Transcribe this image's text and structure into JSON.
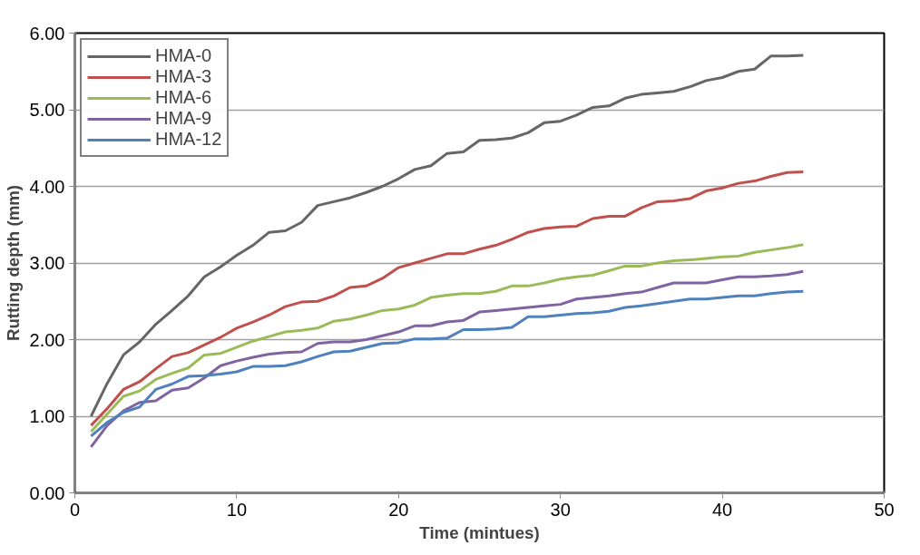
{
  "chart_data": {
    "type": "line",
    "xlabel": "Time (mintues)",
    "ylabel": "Rutting depth (mm)",
    "x": [
      1,
      2,
      3,
      4,
      5,
      6,
      7,
      8,
      9,
      10,
      11,
      12,
      13,
      14,
      15,
      16,
      17,
      18,
      19,
      20,
      21,
      22,
      23,
      24,
      25,
      26,
      27,
      28,
      29,
      30,
      31,
      32,
      33,
      34,
      35,
      36,
      37,
      38,
      39,
      40,
      41,
      42,
      43,
      44,
      45
    ],
    "xlim": [
      0,
      50
    ],
    "xticks": [
      0,
      10,
      20,
      30,
      40,
      50
    ],
    "ylim": [
      0,
      6
    ],
    "yticks": [
      {
        "value": 0,
        "label": "0.00"
      },
      {
        "value": 1,
        "label": "1.00"
      },
      {
        "value": 2,
        "label": "2.00"
      },
      {
        "value": 3,
        "label": "3.00"
      },
      {
        "value": 4,
        "label": "4.00"
      },
      {
        "value": 5,
        "label": "5.00"
      },
      {
        "value": 6,
        "label": "6.00"
      }
    ],
    "grid": "y",
    "legend": "top left",
    "marker": "none",
    "line_style": "solid",
    "series": [
      {
        "name": "HMA-0",
        "color": "#666666",
        "values": [
          1.0,
          1.43,
          1.8,
          1.97,
          2.2,
          2.38,
          2.57,
          2.82,
          2.95,
          3.1,
          3.23,
          3.4,
          3.42,
          3.53,
          3.75,
          3.8,
          3.85,
          3.92,
          4.0,
          4.1,
          4.22,
          4.27,
          4.43,
          4.45,
          4.6,
          4.61,
          4.63,
          4.7,
          4.83,
          4.85,
          4.93,
          5.03,
          5.05,
          5.15,
          5.2,
          5.22,
          5.24,
          5.3,
          5.38,
          5.42,
          5.5,
          5.53,
          5.7,
          5.7,
          5.71
        ]
      },
      {
        "name": "HMA-3",
        "color": "#c0504d",
        "values": [
          0.88,
          1.1,
          1.35,
          1.45,
          1.62,
          1.78,
          1.83,
          1.93,
          2.03,
          2.15,
          2.23,
          2.32,
          2.43,
          2.49,
          2.5,
          2.57,
          2.68,
          2.7,
          2.8,
          2.94,
          3.0,
          3.06,
          3.12,
          3.12,
          3.18,
          3.23,
          3.31,
          3.4,
          3.45,
          3.47,
          3.48,
          3.58,
          3.61,
          3.61,
          3.72,
          3.8,
          3.81,
          3.84,
          3.94,
          3.98,
          4.04,
          4.07,
          4.13,
          4.18,
          4.19
        ]
      },
      {
        "name": "HMA-6",
        "color": "#9bbb59",
        "values": [
          0.8,
          1.03,
          1.26,
          1.33,
          1.48,
          1.56,
          1.63,
          1.8,
          1.82,
          1.9,
          1.98,
          2.04,
          2.1,
          2.12,
          2.15,
          2.24,
          2.27,
          2.32,
          2.38,
          2.4,
          2.45,
          2.55,
          2.58,
          2.6,
          2.6,
          2.63,
          2.7,
          2.7,
          2.74,
          2.79,
          2.82,
          2.84,
          2.9,
          2.96,
          2.96,
          3.0,
          3.03,
          3.04,
          3.06,
          3.08,
          3.09,
          3.14,
          3.17,
          3.2,
          3.24
        ]
      },
      {
        "name": "HMA-9",
        "color": "#8064a2",
        "values": [
          0.6,
          0.88,
          1.07,
          1.18,
          1.2,
          1.34,
          1.37,
          1.5,
          1.66,
          1.72,
          1.77,
          1.81,
          1.83,
          1.84,
          1.95,
          1.97,
          1.97,
          2.0,
          2.05,
          2.1,
          2.18,
          2.18,
          2.23,
          2.25,
          2.36,
          2.38,
          2.4,
          2.42,
          2.44,
          2.46,
          2.53,
          2.55,
          2.57,
          2.6,
          2.62,
          2.68,
          2.74,
          2.74,
          2.74,
          2.78,
          2.82,
          2.82,
          2.83,
          2.85,
          2.89
        ]
      },
      {
        "name": "HMA-12",
        "color": "#4f81bd",
        "values": [
          0.74,
          0.92,
          1.05,
          1.12,
          1.35,
          1.42,
          1.52,
          1.53,
          1.55,
          1.58,
          1.65,
          1.65,
          1.66,
          1.71,
          1.78,
          1.84,
          1.85,
          1.9,
          1.95,
          1.96,
          2.01,
          2.01,
          2.02,
          2.13,
          2.13,
          2.14,
          2.16,
          2.3,
          2.3,
          2.32,
          2.34,
          2.35,
          2.37,
          2.42,
          2.44,
          2.47,
          2.5,
          2.53,
          2.53,
          2.55,
          2.57,
          2.57,
          2.6,
          2.62,
          2.63
        ]
      }
    ]
  }
}
